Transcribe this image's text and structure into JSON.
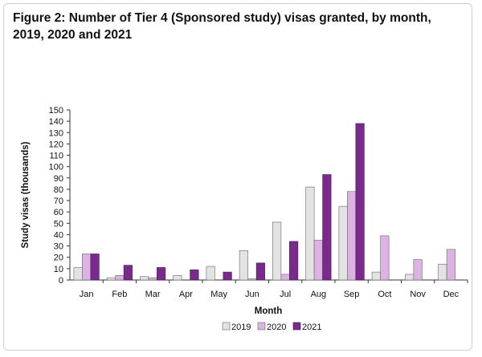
{
  "title": "Figure 2: Number of Tier 4 (Sponsored study) visas granted, by month, 2019, 2020 and 2021",
  "chart_data": {
    "type": "bar",
    "xlabel": "Month",
    "ylabel": "Study visas (thousands)",
    "ylim": [
      0,
      150
    ],
    "yticks": [
      0,
      10,
      20,
      30,
      40,
      50,
      60,
      70,
      80,
      90,
      100,
      110,
      120,
      130,
      140,
      150
    ],
    "grid": false,
    "legend_position": "bottom",
    "categories": [
      "Jan",
      "Feb",
      "Mar",
      "Apr",
      "May",
      "Jun",
      "Jul",
      "Aug",
      "Sep",
      "Oct",
      "Nov",
      "Dec"
    ],
    "series": [
      {
        "name": "2019",
        "color": "#e3e3e3",
        "values": [
          11,
          2,
          3,
          4,
          12,
          26,
          51,
          82,
          65,
          7,
          5,
          14
        ]
      },
      {
        "name": "2020",
        "color": "#ddb3e3",
        "values": [
          23,
          4,
          2,
          0,
          0,
          1,
          5,
          35,
          78,
          39,
          18,
          27
        ]
      },
      {
        "name": "2021",
        "color": "#7a2a8c",
        "values": [
          23,
          13,
          11,
          9,
          7,
          15,
          34,
          93,
          138,
          null,
          null,
          null
        ]
      }
    ]
  }
}
